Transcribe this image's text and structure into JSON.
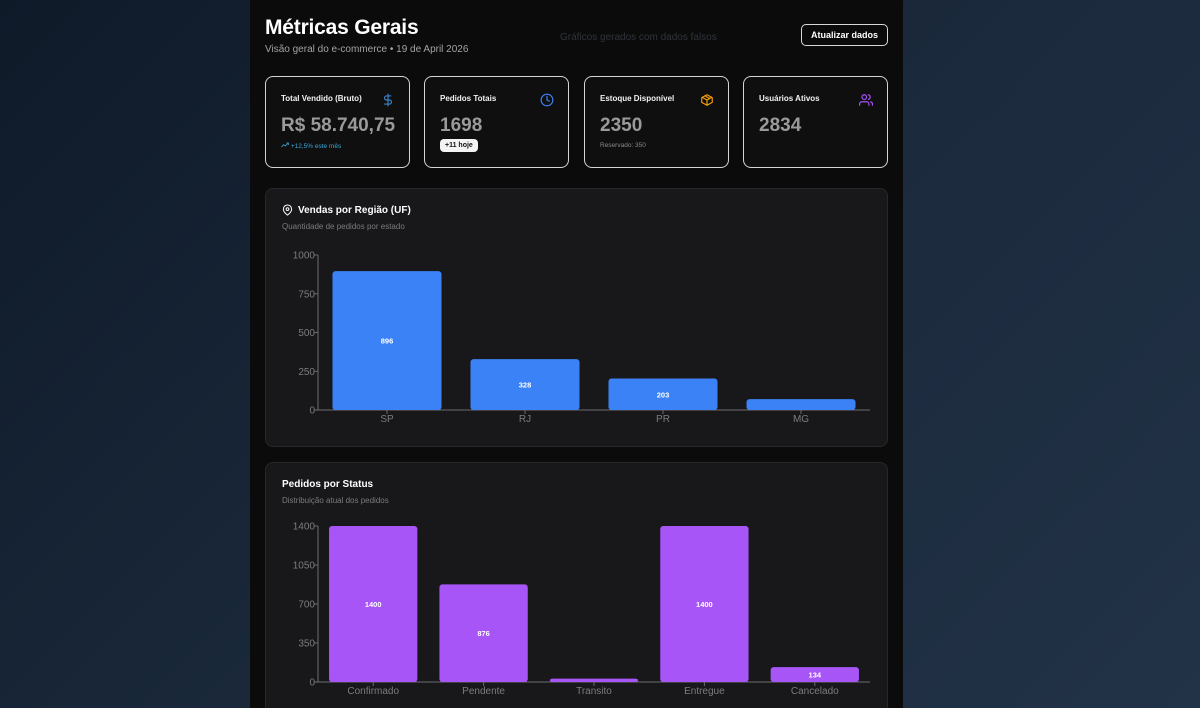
{
  "header": {
    "title": "Métricas Gerais",
    "subtitle": "Visão geral do e-commerce • 19 de April 2026",
    "fake_note": "Gráficos gerados com dados falsos",
    "refresh_label": "Atualizar dados"
  },
  "cards": [
    {
      "label": "Total Vendido (Bruto)",
      "value": "R$ 58.740,75",
      "sub": "+12,5% este mês",
      "icon": "dollar-icon",
      "icon_color": "#3b82c4"
    },
    {
      "label": "Pedidos Totais",
      "value": "1698",
      "badge": "+11 hoje",
      "icon": "clock-icon",
      "icon_color": "#3b82f6"
    },
    {
      "label": "Estoque Disponível",
      "value": "2350",
      "sub": "Reservado: 350",
      "icon": "box-icon",
      "icon_color": "#f59e0b"
    },
    {
      "label": "Usuários Ativos",
      "value": "2834",
      "icon": "users-icon",
      "icon_color": "#a855f7"
    }
  ],
  "region_panel": {
    "title": "Vendas por Região (UF)",
    "subtitle": "Quantidade de pedidos por estado",
    "icon": "map-pin-icon"
  },
  "status_panel": {
    "title": "Pedidos por Status",
    "subtitle": "Distribuição atual dos pedidos"
  },
  "chart_data": [
    {
      "type": "bar",
      "title": "Vendas por Região (UF)",
      "categories": [
        "SP",
        "RJ",
        "PR",
        "MG"
      ],
      "values": [
        896,
        328,
        203,
        70
      ],
      "data_labels": [
        "896",
        "328",
        "203",
        ""
      ],
      "ylim": [
        0,
        1000
      ],
      "yticks": [
        0,
        250,
        500,
        750,
        1000
      ],
      "color": "#3b82f6",
      "grid": false
    },
    {
      "type": "bar",
      "title": "Pedidos por Status",
      "categories": [
        "Confirmado",
        "Pendente",
        "Transito",
        "Entregue",
        "Cancelado"
      ],
      "values": [
        1400,
        876,
        30,
        1400,
        134
      ],
      "data_labels": [
        "1400",
        "876",
        "",
        "1400",
        "134"
      ],
      "ylim": [
        0,
        1400
      ],
      "yticks": [
        0,
        350,
        700,
        1050,
        1400
      ],
      "color": "#a855f7",
      "grid": false
    }
  ]
}
